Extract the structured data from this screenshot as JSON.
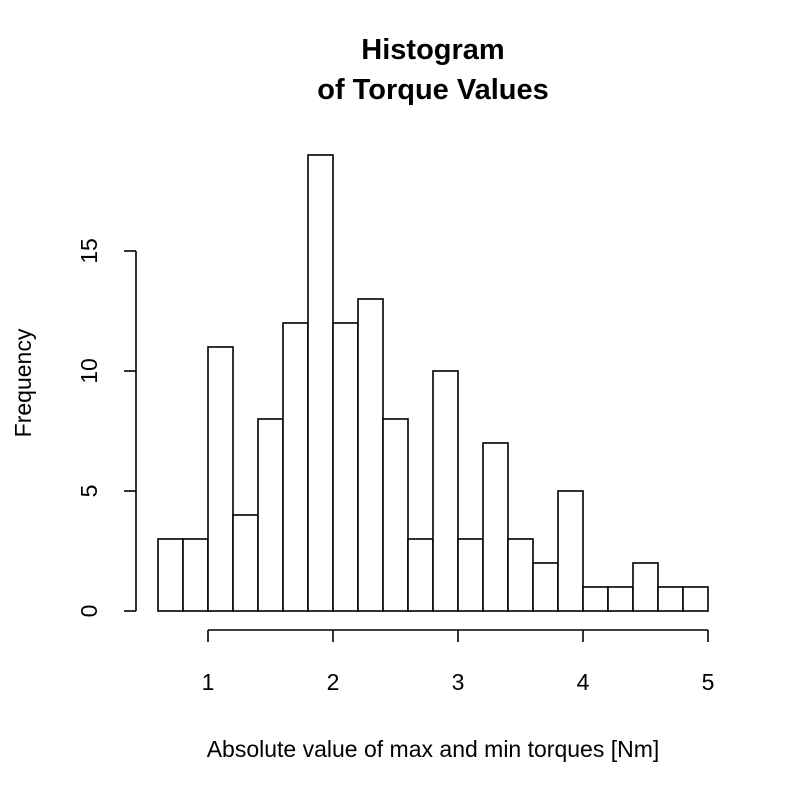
{
  "chart_data": {
    "type": "histogram",
    "title": [
      "Histogram",
      "of Torque Values"
    ],
    "xlabel": "Absolute value of max and min torques [Nm]",
    "ylabel": "Frequency",
    "xlim": [
      1,
      5
    ],
    "ylim": [
      0,
      19
    ],
    "x_ticks": [
      1,
      2,
      3,
      4,
      5
    ],
    "y_ticks": [
      0,
      5,
      10,
      15
    ],
    "bin_width": 0.2,
    "bins": [
      {
        "start": 0.6,
        "end": 0.8,
        "count": 3
      },
      {
        "start": 0.8,
        "end": 1.0,
        "count": 3
      },
      {
        "start": 1.0,
        "end": 1.2,
        "count": 11
      },
      {
        "start": 1.2,
        "end": 1.4,
        "count": 4
      },
      {
        "start": 1.4,
        "end": 1.6,
        "count": 8
      },
      {
        "start": 1.6,
        "end": 1.8,
        "count": 12
      },
      {
        "start": 1.8,
        "end": 2.0,
        "count": 19
      },
      {
        "start": 2.0,
        "end": 2.2,
        "count": 12
      },
      {
        "start": 2.2,
        "end": 2.4,
        "count": 13
      },
      {
        "start": 2.4,
        "end": 2.6,
        "count": 8
      },
      {
        "start": 2.6,
        "end": 2.8,
        "count": 3
      },
      {
        "start": 2.8,
        "end": 3.0,
        "count": 10
      },
      {
        "start": 3.0,
        "end": 3.2,
        "count": 3
      },
      {
        "start": 3.2,
        "end": 3.4,
        "count": 7
      },
      {
        "start": 3.4,
        "end": 3.6,
        "count": 3
      },
      {
        "start": 3.6,
        "end": 3.8,
        "count": 2
      },
      {
        "start": 3.8,
        "end": 4.0,
        "count": 5
      },
      {
        "start": 4.0,
        "end": 4.2,
        "count": 1
      },
      {
        "start": 4.2,
        "end": 4.4,
        "count": 1
      },
      {
        "start": 4.4,
        "end": 4.6,
        "count": 2
      },
      {
        "start": 4.6,
        "end": 4.8,
        "count": 1
      },
      {
        "start": 4.8,
        "end": 5.0,
        "count": 1
      }
    ],
    "grid": false,
    "legend": "none",
    "bar_fill": "#ffffff",
    "bar_stroke": "#000000"
  }
}
